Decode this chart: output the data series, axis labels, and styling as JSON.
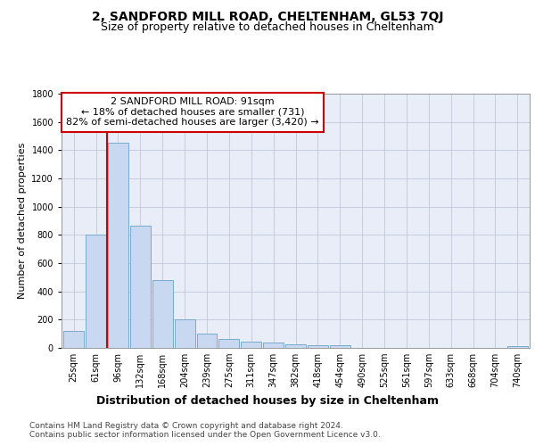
{
  "title1": "2, SANDFORD MILL ROAD, CHELTENHAM, GL53 7QJ",
  "title2": "Size of property relative to detached houses in Cheltenham",
  "xlabel": "Distribution of detached houses by size in Cheltenham",
  "ylabel": "Number of detached properties",
  "categories": [
    "25sqm",
    "61sqm",
    "96sqm",
    "132sqm",
    "168sqm",
    "204sqm",
    "239sqm",
    "275sqm",
    "311sqm",
    "347sqm",
    "382sqm",
    "418sqm",
    "454sqm",
    "490sqm",
    "525sqm",
    "561sqm",
    "597sqm",
    "633sqm",
    "668sqm",
    "704sqm",
    "740sqm"
  ],
  "values": [
    120,
    800,
    1455,
    865,
    480,
    200,
    100,
    65,
    45,
    35,
    25,
    22,
    22,
    0,
    0,
    0,
    0,
    0,
    0,
    0,
    15
  ],
  "bar_color": "#c8d8f0",
  "bar_edge_color": "#7aabcc",
  "vline_color": "#cc0000",
  "vline_x_index": 2,
  "annotation_text": "2 SANDFORD MILL ROAD: 91sqm\n← 18% of detached houses are smaller (731)\n82% of semi-detached houses are larger (3,420) →",
  "annotation_box_facecolor": "#ffffff",
  "annotation_box_edgecolor": "#cc0000",
  "background_color": "#ffffff",
  "plot_bg_color": "#e8edf8",
  "ylim": [
    0,
    1800
  ],
  "yticks": [
    0,
    200,
    400,
    600,
    800,
    1000,
    1200,
    1400,
    1600,
    1800
  ],
  "grid_color": "#c0c8d8",
  "title1_fontsize": 10,
  "title2_fontsize": 9,
  "xlabel_fontsize": 9,
  "ylabel_fontsize": 8,
  "tick_fontsize": 7,
  "annotation_fontsize": 8,
  "footer_fontsize": 6.5,
  "footer": "Contains HM Land Registry data © Crown copyright and database right 2024.\nContains public sector information licensed under the Open Government Licence v3.0."
}
